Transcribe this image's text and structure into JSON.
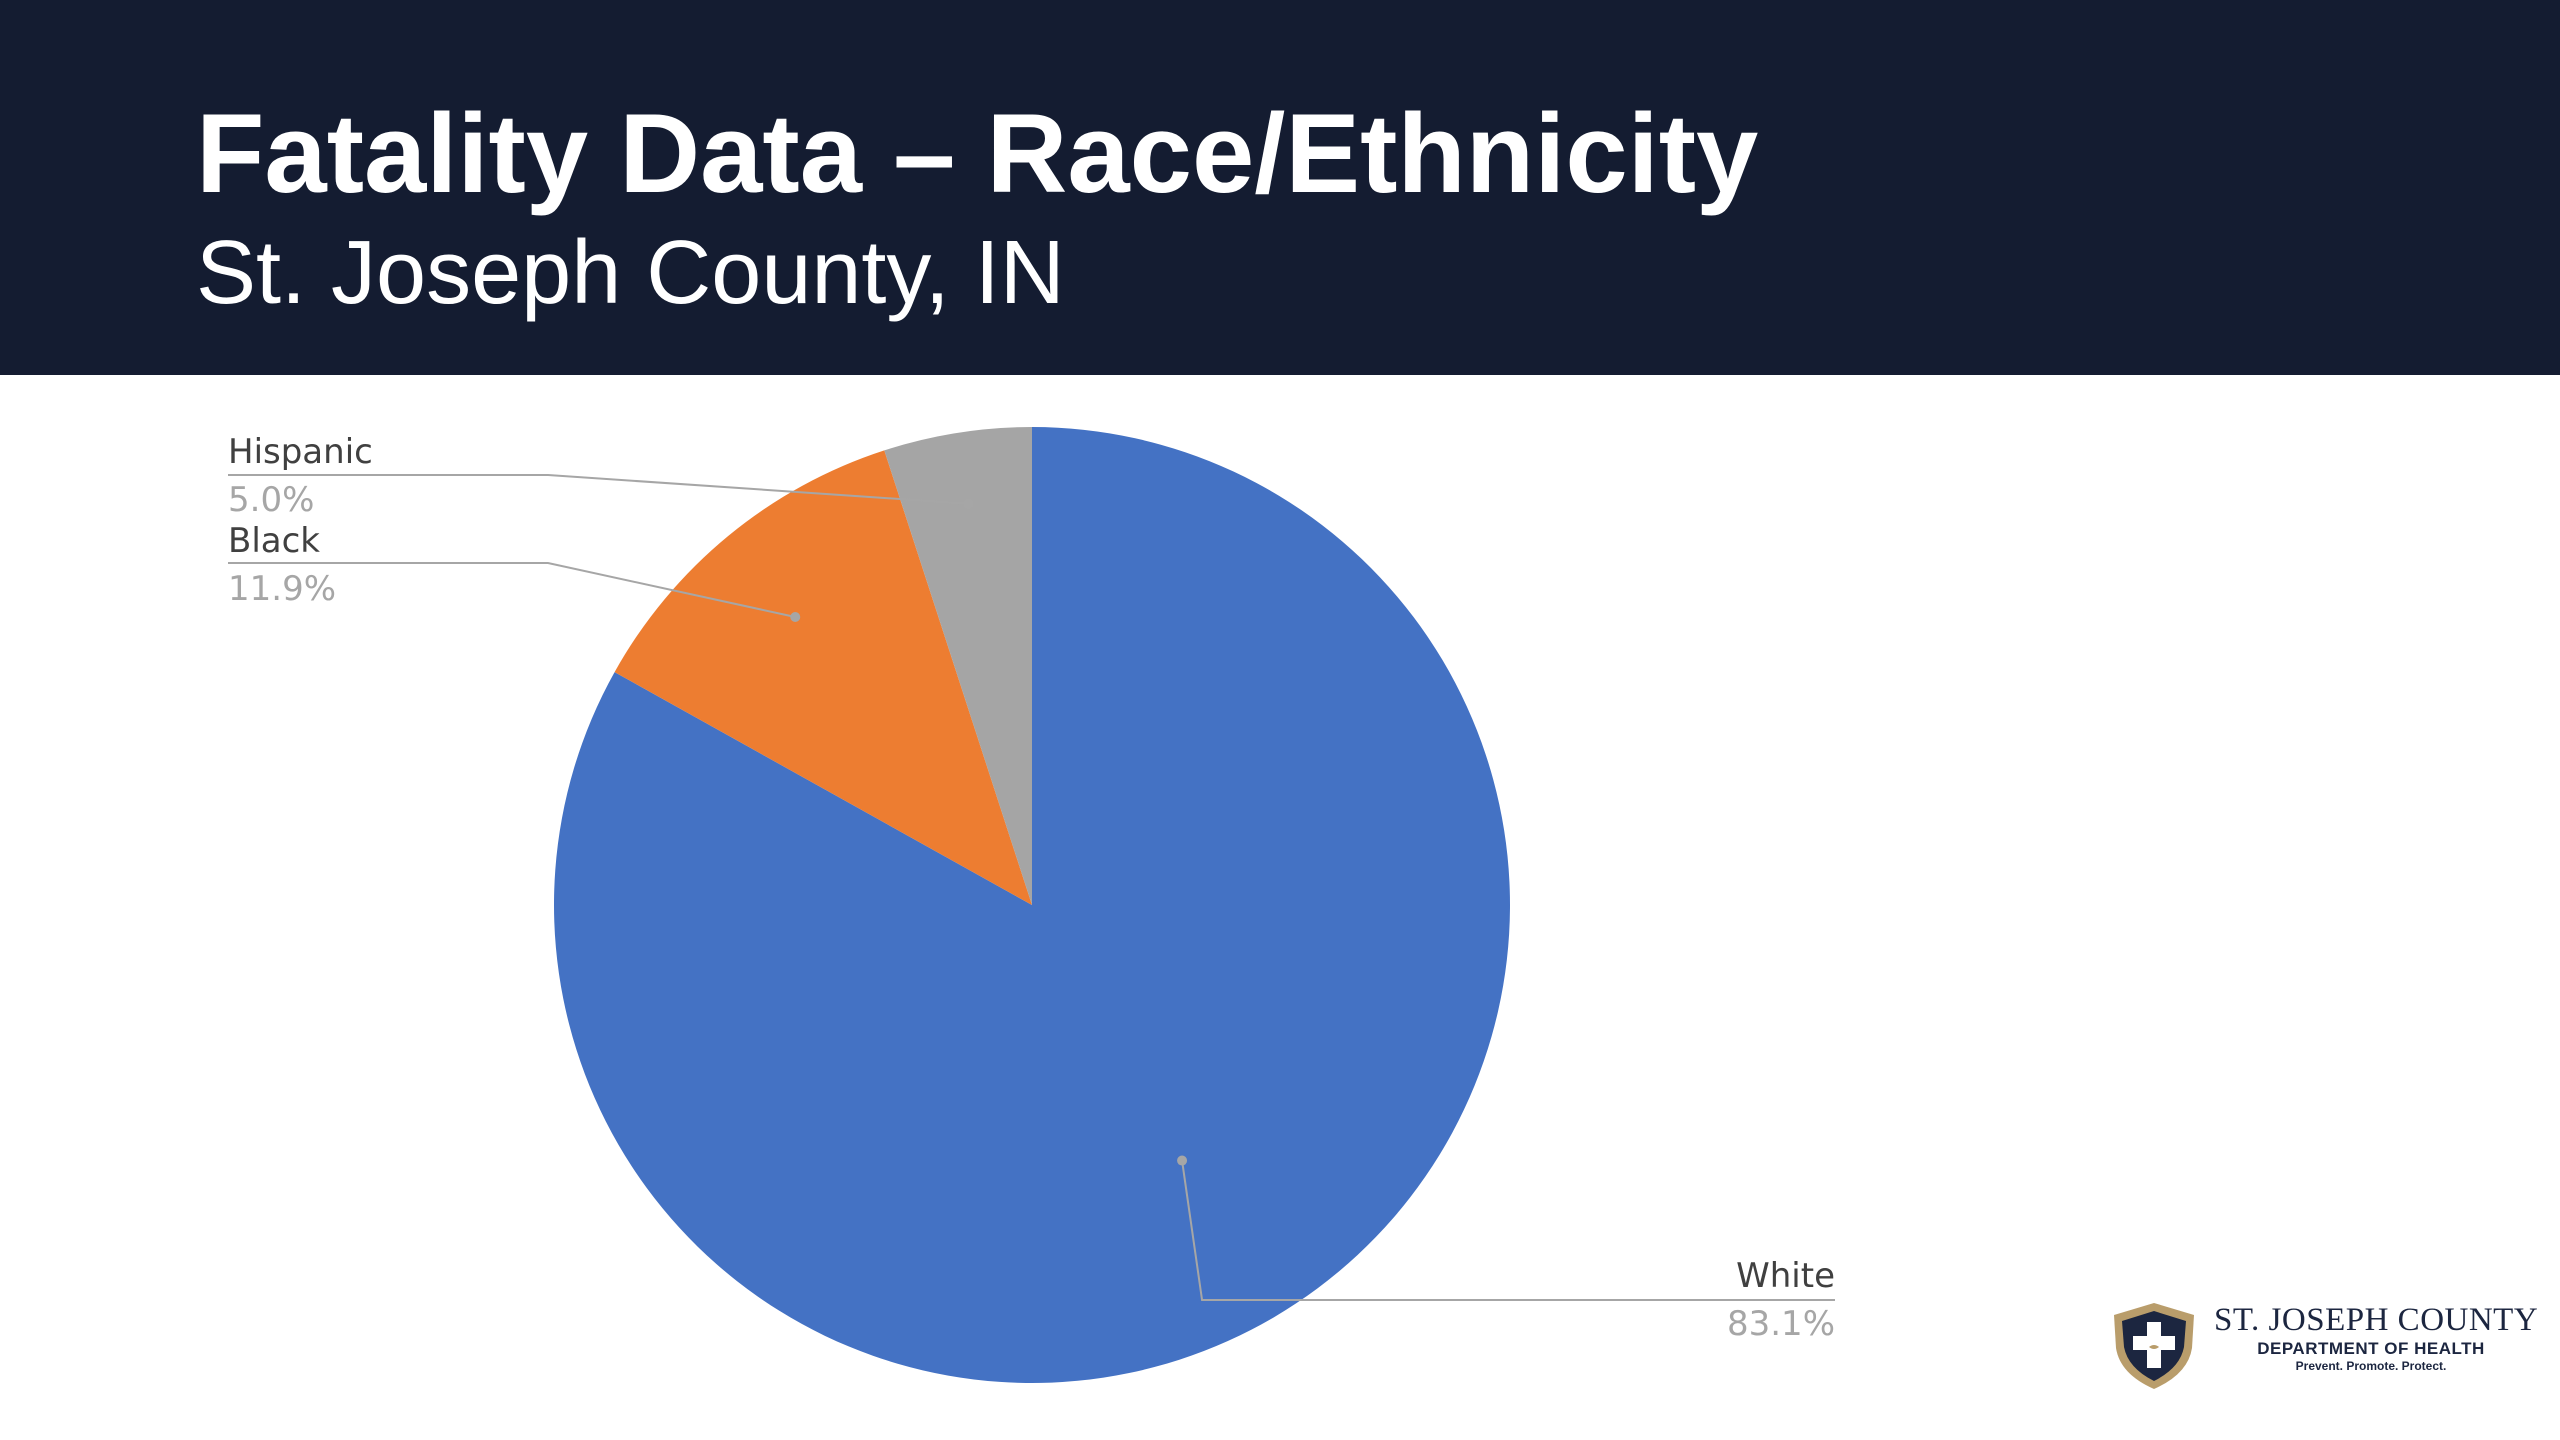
{
  "slide": {
    "title": "Fatality Data – Race/Ethnicity",
    "subtitle": "St. Joseph County, IN",
    "header_color": "#141c31"
  },
  "chart_data": {
    "type": "pie",
    "categories": [
      "White",
      "Black",
      "Hispanic"
    ],
    "values": [
      83.1,
      11.9,
      5.0
    ],
    "labels": [
      "83.1%",
      "11.9%",
      "5.0%"
    ],
    "colors": [
      "#4472c4",
      "#ed7d31",
      "#a5a5a5"
    ],
    "start_angle": "12 o'clock, clockwise",
    "legend": "none (data labels with leader lines)"
  },
  "logo": {
    "line1": "ST. JOSEPH COUNTY",
    "line2": "DEPARTMENT OF HEALTH",
    "line3": "Prevent. Promote. Protect.",
    "icon": "shield-cross-icon"
  }
}
